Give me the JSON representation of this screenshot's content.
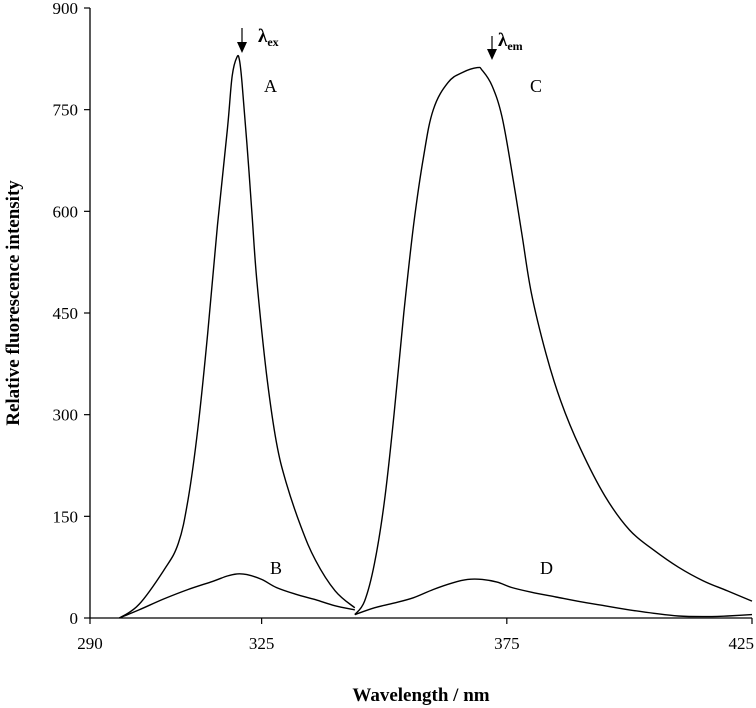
{
  "chart_data": {
    "type": "line",
    "xlabel": "Wavelength / nm",
    "ylabel": "Relative fluorescence intensity",
    "xlim": [
      290,
      425
    ],
    "ylim": [
      0,
      900
    ],
    "x_ticks": [
      290,
      325,
      375,
      425
    ],
    "y_ticks": [
      0,
      150,
      300,
      450,
      600,
      750,
      900
    ],
    "grid": false,
    "series": [
      {
        "name": "A",
        "x": [
          296,
          300,
          305,
          308,
          310,
          312,
          314,
          316,
          318,
          319,
          320,
          320.5,
          321,
          322,
          323,
          324,
          326,
          328,
          330,
          333,
          336,
          340,
          344
        ],
        "y": [
          0,
          20,
          70,
          110,
          175,
          280,
          420,
          580,
          720,
          800,
          828,
          822,
          790,
          700,
          600,
          500,
          360,
          260,
          200,
          135,
          85,
          40,
          15
        ]
      },
      {
        "name": "B",
        "x": [
          296,
          300,
          305,
          310,
          315,
          318,
          320,
          322,
          325,
          328,
          332,
          336,
          340,
          344
        ],
        "y": [
          0,
          12,
          28,
          42,
          54,
          62,
          65,
          64,
          57,
          45,
          35,
          27,
          18,
          12
        ]
      },
      {
        "name": "C",
        "x": [
          344,
          346,
          348,
          350,
          352,
          354,
          356,
          358,
          360,
          363,
          366,
          369,
          370,
          372,
          374,
          376,
          378,
          380,
          383,
          386,
          390,
          395,
          400,
          405,
          410,
          415,
          420,
          425
        ],
        "y": [
          5,
          25,
          80,
          170,
          300,
          450,
          580,
          680,
          750,
          790,
          805,
          812,
          808,
          785,
          740,
          660,
          570,
          480,
          390,
          320,
          250,
          180,
          130,
          100,
          75,
          55,
          40,
          25
        ]
      },
      {
        "name": "D",
        "x": [
          344,
          348,
          352,
          356,
          360,
          364,
          367,
          370,
          373,
          376,
          380,
          385,
          390,
          395,
          400,
          405,
          410,
          415,
          420,
          425
        ],
        "y": [
          5,
          15,
          22,
          30,
          42,
          52,
          57,
          57,
          53,
          45,
          38,
          31,
          24,
          18,
          12,
          7,
          3,
          2,
          3,
          5
        ]
      }
    ],
    "annotations": {
      "excitation": {
        "symbol": "λ",
        "subscript": "ex",
        "x": 320
      },
      "emission": {
        "symbol": "λ",
        "subscript": "em",
        "x": 370
      }
    }
  }
}
